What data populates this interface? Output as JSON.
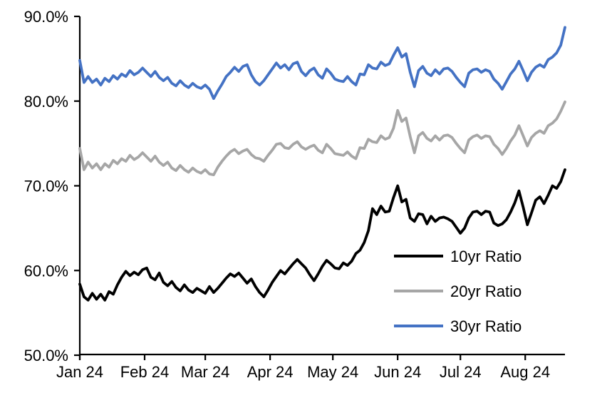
{
  "page": {
    "background_color": "#ffffff",
    "text_color": "#000000"
  },
  "chart_data": {
    "type": "line",
    "title": "",
    "xlabel": "",
    "ylabel": "",
    "grid": false,
    "legend_position": "inside-lower-right",
    "axis_color": "#000000",
    "y_range": [
      50,
      90
    ],
    "y_ticks": [
      {
        "value": 90,
        "label": "90.0%"
      },
      {
        "value": 80,
        "label": "80.0%"
      },
      {
        "value": 70,
        "label": "70.0%"
      },
      {
        "value": 60,
        "label": "60.0%"
      },
      {
        "value": 50,
        "label": "50.0%"
      }
    ],
    "x_unit": "days-since-jan-1-2024",
    "x_range_days": [
      0,
      232
    ],
    "x_tick_days": [
      0,
      31,
      60,
      91,
      121,
      152,
      182,
      213
    ],
    "x_tick_labels": [
      "Jan 24",
      "Feb 24",
      "Mar 24",
      "Apr 24",
      "May 24",
      "Jun 24",
      "Jul 24",
      "Aug 24"
    ],
    "day_step": 2,
    "series": [
      {
        "name": "10yr Ratio",
        "color": "#000000",
        "values": [
          58.4,
          56.9,
          56.5,
          57.3,
          56.6,
          57.2,
          56.5,
          57.5,
          57.2,
          58.3,
          59.2,
          59.9,
          59.4,
          59.8,
          59.5,
          60.1,
          60.3,
          59.2,
          58.9,
          59.7,
          58.6,
          58.2,
          58.7,
          58.0,
          57.6,
          58.3,
          57.7,
          57.4,
          57.9,
          57.6,
          57.3,
          58.1,
          57.4,
          57.9,
          58.5,
          59.1,
          59.6,
          59.3,
          59.7,
          59.1,
          58.5,
          59.0,
          58.1,
          57.4,
          56.9,
          57.7,
          58.6,
          59.3,
          60.0,
          59.6,
          60.2,
          60.8,
          61.3,
          60.8,
          60.3,
          59.5,
          58.8,
          59.6,
          60.5,
          61.2,
          60.8,
          60.3,
          60.2,
          60.9,
          60.6,
          61.1,
          62.0,
          62.4,
          63.3,
          64.7,
          67.3,
          66.6,
          67.6,
          66.9,
          67.0,
          68.6,
          70.0,
          68.1,
          68.4,
          66.2,
          65.8,
          66.7,
          66.6,
          65.5,
          66.4,
          65.8,
          66.2,
          66.3,
          66.1,
          65.8,
          65.1,
          64.4,
          65.0,
          66.2,
          66.9,
          67.0,
          66.6,
          67.0,
          66.9,
          65.6,
          65.3,
          65.5,
          66.0,
          66.9,
          68.0,
          69.4,
          67.5,
          65.4,
          66.8,
          68.3,
          68.7,
          67.9,
          68.9,
          70.0,
          69.7,
          70.5,
          71.9
        ]
      },
      {
        "name": "20yr Ratio",
        "color": "#A6A6A6",
        "values": [
          74.4,
          71.9,
          72.8,
          72.1,
          72.6,
          71.9,
          72.6,
          72.2,
          73.0,
          72.6,
          73.2,
          72.9,
          73.6,
          73.1,
          73.4,
          73.9,
          73.4,
          72.9,
          73.5,
          72.8,
          72.4,
          72.8,
          72.1,
          71.8,
          72.4,
          71.9,
          71.6,
          72.1,
          71.7,
          71.5,
          71.9,
          71.4,
          71.3,
          72.2,
          72.9,
          73.5,
          74.0,
          74.3,
          73.8,
          74.1,
          74.3,
          73.7,
          73.3,
          73.2,
          72.9,
          73.6,
          74.2,
          74.9,
          75.0,
          74.5,
          74.4,
          74.9,
          75.2,
          74.6,
          74.3,
          74.6,
          74.8,
          74.2,
          73.9,
          74.9,
          74.4,
          73.8,
          73.7,
          73.6,
          74.0,
          73.5,
          73.2,
          74.5,
          74.4,
          75.5,
          75.2,
          75.1,
          75.9,
          75.5,
          75.7,
          76.8,
          78.9,
          77.6,
          78.0,
          75.8,
          73.9,
          75.9,
          76.3,
          75.6,
          75.3,
          75.9,
          75.4,
          75.9,
          76.0,
          75.7,
          75.0,
          74.4,
          73.9,
          75.4,
          75.8,
          76.0,
          75.6,
          75.9,
          75.8,
          74.9,
          74.4,
          73.7,
          74.4,
          75.3,
          76.0,
          77.1,
          75.9,
          74.7,
          75.7,
          76.2,
          76.5,
          76.2,
          77.1,
          77.4,
          77.9,
          78.8,
          79.9
        ]
      },
      {
        "name": "30yr Ratio",
        "color": "#4472C4",
        "values": [
          84.8,
          82.2,
          82.9,
          82.2,
          82.6,
          81.9,
          82.7,
          82.3,
          83.0,
          82.6,
          83.2,
          82.9,
          83.6,
          83.1,
          83.4,
          83.9,
          83.4,
          82.9,
          83.5,
          82.8,
          82.4,
          82.8,
          82.1,
          81.8,
          82.4,
          81.9,
          81.6,
          82.1,
          81.7,
          81.5,
          81.9,
          81.4,
          80.3,
          81.2,
          82.0,
          82.9,
          83.4,
          84.0,
          83.5,
          84.1,
          84.3,
          83.1,
          82.3,
          81.9,
          82.4,
          83.1,
          83.8,
          84.5,
          83.9,
          84.3,
          83.7,
          84.4,
          84.6,
          83.5,
          83.0,
          83.6,
          83.9,
          83.1,
          82.7,
          83.8,
          83.3,
          82.6,
          82.4,
          82.3,
          82.9,
          82.3,
          81.9,
          83.2,
          83.1,
          84.3,
          83.9,
          83.8,
          84.6,
          84.2,
          84.4,
          85.4,
          86.3,
          85.2,
          85.6,
          83.4,
          81.7,
          83.6,
          84.1,
          83.3,
          83.0,
          83.7,
          83.2,
          83.8,
          83.9,
          83.5,
          82.8,
          82.2,
          81.7,
          83.3,
          83.7,
          83.8,
          83.4,
          83.7,
          83.5,
          82.6,
          82.1,
          81.4,
          82.3,
          83.2,
          83.8,
          84.7,
          83.6,
          82.4,
          83.4,
          84.0,
          84.3,
          84.0,
          84.9,
          85.2,
          85.7,
          86.6,
          88.7
        ]
      }
    ]
  }
}
